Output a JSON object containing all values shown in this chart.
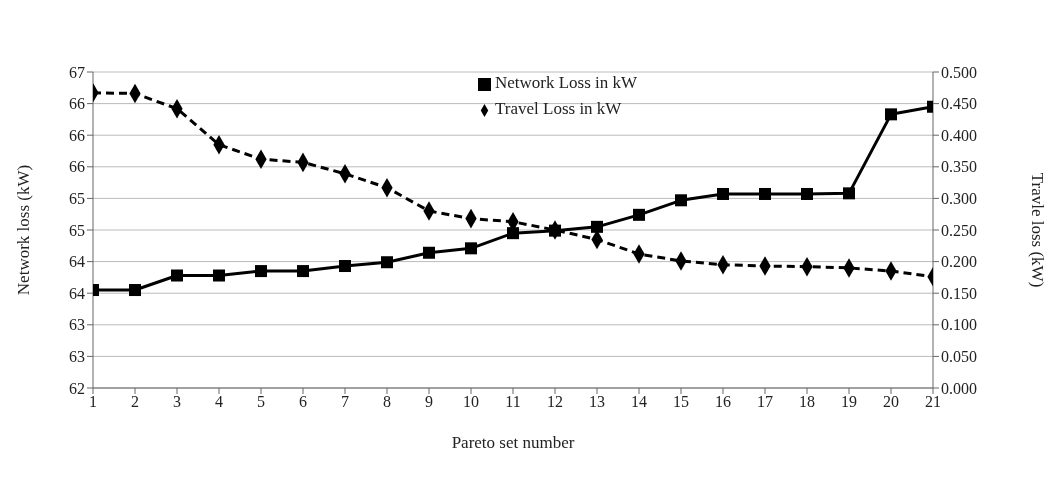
{
  "chart_data": {
    "type": "line",
    "xlabel": "Pareto set number",
    "ylabel": "Network loss (kW)",
    "y2label": "Travle loss (kW)",
    "x": [
      1,
      2,
      3,
      4,
      5,
      6,
      7,
      8,
      9,
      10,
      11,
      12,
      13,
      14,
      15,
      16,
      17,
      18,
      19,
      20,
      21
    ],
    "xlim": [
      1,
      21
    ],
    "xticks": [
      1,
      2,
      3,
      4,
      5,
      6,
      7,
      8,
      9,
      10,
      11,
      12,
      13,
      14,
      15,
      16,
      17,
      18,
      19,
      20,
      21
    ],
    "ylim": [
      62,
      67
    ],
    "yticks": [
      62,
      {
        "value": 62.5,
        "label": "63"
      },
      63,
      {
        "value": 63.5,
        "label": "64"
      },
      64,
      {
        "value": 64.5,
        "label": "65"
      },
      65,
      {
        "value": 65.5,
        "label": "66"
      },
      66,
      {
        "value": 66.5,
        "label": "66"
      },
      67
    ],
    "y2lim": [
      0,
      0.5
    ],
    "y2ticks": [
      {
        "value": 0,
        "label": "0.000"
      },
      {
        "value": 0.05,
        "label": "0.050"
      },
      {
        "value": 0.1,
        "label": "0.100"
      },
      {
        "value": 0.15,
        "label": "0.150"
      },
      {
        "value": 0.2,
        "label": "0.200"
      },
      {
        "value": 0.25,
        "label": "0.250"
      },
      {
        "value": 0.3,
        "label": "0.300"
      },
      {
        "value": 0.35,
        "label": "0.350"
      },
      {
        "value": 0.4,
        "label": "0.400"
      },
      {
        "value": 0.45,
        "label": "0.450"
      },
      {
        "value": 0.5,
        "label": "0.500"
      }
    ],
    "grid": "y",
    "legend": "top",
    "series": [
      {
        "name": "Network Loss in kW",
        "color": "#000000",
        "marker": "square",
        "line_style": "solid",
        "values": [
          63.55,
          63.55,
          63.78,
          63.78,
          63.85,
          63.85,
          63.93,
          63.99,
          64.14,
          64.21,
          64.45,
          64.49,
          64.55,
          64.74,
          64.97,
          65.07,
          65.07,
          65.07,
          65.08,
          66.33,
          66.45
        ]
      },
      {
        "name": "Travel Loss in kW",
        "color": "#000000",
        "marker": "diamond",
        "line_style": "dashed",
        "axis": "y2",
        "values": [
          0.467,
          0.466,
          0.442,
          0.385,
          0.362,
          0.357,
          0.339,
          0.317,
          0.28,
          0.268,
          0.263,
          0.25,
          0.235,
          0.212,
          0.201,
          0.195,
          0.193,
          0.192,
          0.19,
          0.185,
          0.176
        ]
      }
    ]
  }
}
